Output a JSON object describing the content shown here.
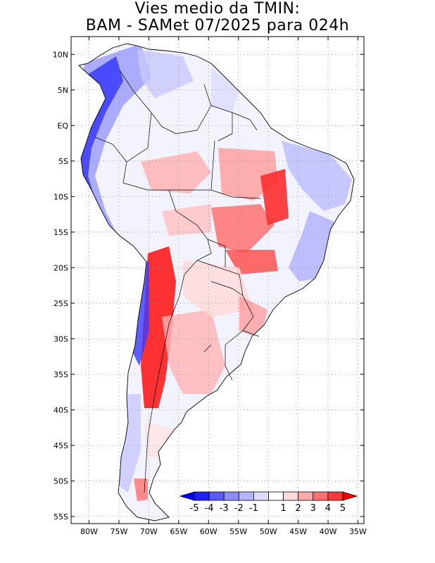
{
  "title": {
    "line1": "Vies medio da TMIN:",
    "line2": "BAM - SAMet 07/2025  para 024h"
  },
  "map": {
    "region": "South America",
    "lon_range": [
      -83,
      -34
    ],
    "lat_range": [
      12.5,
      -56
    ]
  },
  "lat_ticks": [
    {
      "value": 10,
      "label": "10N"
    },
    {
      "value": 5,
      "label": "5N"
    },
    {
      "value": 0,
      "label": "EQ"
    },
    {
      "value": -5,
      "label": "5S"
    },
    {
      "value": -10,
      "label": "10S"
    },
    {
      "value": -15,
      "label": "15S"
    },
    {
      "value": -20,
      "label": "20S"
    },
    {
      "value": -25,
      "label": "25S"
    },
    {
      "value": -30,
      "label": "30S"
    },
    {
      "value": -35,
      "label": "35S"
    },
    {
      "value": -40,
      "label": "40S"
    },
    {
      "value": -45,
      "label": "45S"
    },
    {
      "value": -50,
      "label": "50S"
    },
    {
      "value": -55,
      "label": "55S"
    }
  ],
  "lon_ticks": [
    {
      "value": -80,
      "label": "80W"
    },
    {
      "value": -75,
      "label": "75W"
    },
    {
      "value": -70,
      "label": "70W"
    },
    {
      "value": -65,
      "label": "65W"
    },
    {
      "value": -60,
      "label": "60W"
    },
    {
      "value": -55,
      "label": "55W"
    },
    {
      "value": -50,
      "label": "50W"
    },
    {
      "value": -45,
      "label": "45W"
    },
    {
      "value": -40,
      "label": "40W"
    },
    {
      "value": -35,
      "label": "35W"
    }
  ],
  "colorbar": {
    "labels": [
      "-5",
      "-4",
      "-3",
      "-2",
      "-1",
      "1",
      "2",
      "3",
      "4",
      "5"
    ],
    "colors": [
      "#1e1eff",
      "#5a5aff",
      "#8c8cff",
      "#b4b4ff",
      "#dcdcff",
      "#ffffff",
      "#ffdcdc",
      "#ffaaaa",
      "#ff7070",
      "#ff3a3a"
    ],
    "over_color": "#ff0000",
    "under_color": "#0000ff"
  }
}
